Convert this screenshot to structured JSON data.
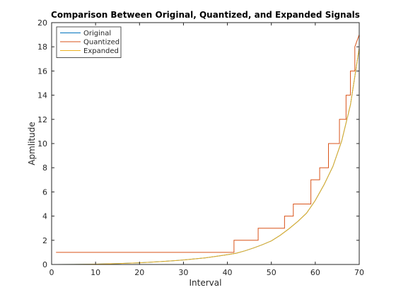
{
  "chart_data": {
    "type": "line",
    "title": "Comparison Between Original, Quantized, and Expanded Signals",
    "xlabel": "Interval",
    "ylabel": "Apmlitude",
    "xlim": [
      0,
      70
    ],
    "ylim": [
      0,
      20
    ],
    "xticks": [
      0,
      10,
      20,
      30,
      40,
      50,
      60,
      70
    ],
    "yticks": [
      0,
      2,
      4,
      6,
      8,
      10,
      12,
      14,
      16,
      18,
      20
    ],
    "grid": false,
    "legend_position": "top-left",
    "series": [
      {
        "name": "Original",
        "color": "#0072BD",
        "x": [
          1,
          5,
          10,
          15,
          20,
          25,
          30,
          35,
          38,
          40,
          42,
          44,
          46,
          48,
          50,
          52,
          54,
          56,
          58,
          60,
          62,
          64,
          66,
          68,
          70
        ],
        "y": [
          0.0,
          0.01,
          0.03,
          0.07,
          0.14,
          0.24,
          0.37,
          0.55,
          0.7,
          0.81,
          0.93,
          1.13,
          1.37,
          1.64,
          1.95,
          2.41,
          2.95,
          3.55,
          4.24,
          5.3,
          6.6,
          8.1,
          10.2,
          13.2,
          17.9
        ]
      },
      {
        "name": "Quantized",
        "color": "#D95319",
        "x": [
          1,
          41.5,
          41.5,
          47,
          47,
          50.8,
          50.8,
          53,
          53,
          55,
          55,
          57,
          57,
          59,
          59,
          61,
          61,
          63,
          63,
          64.5,
          64.5,
          65.5,
          65.5,
          67,
          67,
          68,
          68,
          69,
          69,
          70
        ],
        "y": [
          1,
          1,
          2,
          2,
          3,
          3,
          3,
          3,
          4,
          4,
          5,
          5,
          5,
          5,
          7,
          7,
          8,
          8,
          10,
          10,
          10,
          10,
          12,
          12,
          14,
          14,
          16,
          16,
          18,
          19
        ]
      },
      {
        "name": "Expanded",
        "color": "#EDB120",
        "x": [
          1,
          5,
          10,
          15,
          20,
          25,
          30,
          35,
          38,
          40,
          42,
          44,
          46,
          48,
          50,
          52,
          54,
          56,
          58,
          60,
          62,
          64,
          66,
          68,
          70
        ],
        "y": [
          0.0,
          0.01,
          0.03,
          0.07,
          0.14,
          0.24,
          0.37,
          0.55,
          0.7,
          0.81,
          0.93,
          1.13,
          1.37,
          1.64,
          1.95,
          2.41,
          2.95,
          3.55,
          4.24,
          5.3,
          6.6,
          8.1,
          10.2,
          13.2,
          17.9
        ]
      }
    ]
  }
}
